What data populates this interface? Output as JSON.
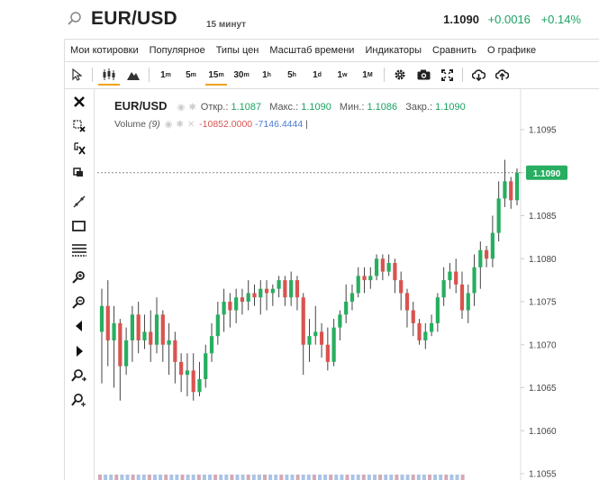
{
  "header": {
    "symbol": "EUR/USD",
    "timeframe": "15 минут",
    "last_price": "1.1090",
    "change": "+0.0016",
    "change_pct": "+0.14%"
  },
  "menu": {
    "items": [
      "Мои котировки",
      "Популярное",
      "Типы цен",
      "Масштаб времени",
      "Индикаторы",
      "Сравнить",
      "О графике"
    ]
  },
  "toolbar": {
    "cursor_icon": "cursor-icon",
    "chart_types": [
      "candles-icon",
      "mountain-icon"
    ],
    "timeframes": [
      {
        "n": "1",
        "u": "m"
      },
      {
        "n": "5",
        "u": "m"
      },
      {
        "n": "15",
        "u": "m"
      },
      {
        "n": "30",
        "u": "m"
      },
      {
        "n": "1",
        "u": "h"
      },
      {
        "n": "5",
        "u": "h"
      },
      {
        "n": "1",
        "u": "d"
      },
      {
        "n": "1",
        "u": "w"
      },
      {
        "n": "1",
        "u": "M"
      }
    ],
    "active_timeframe_index": 2,
    "right_icons": [
      "gear-icon",
      "camera-icon",
      "fullscreen-icon",
      "download-icon",
      "upload-icon"
    ]
  },
  "left_tools": [
    "close-icon",
    "crosshair-remove-icon",
    "magnet-icon",
    "copy-icon",
    "trendline-icon",
    "rectangle-icon",
    "fibonacci-icon",
    "zoom-in-icon",
    "zoom-out-icon",
    "scroll-left-icon",
    "scroll-right-icon",
    "zoom-in-fit-icon",
    "zoom-reset-icon"
  ],
  "legend": {
    "pair": "EUR/USD",
    "open_label": "Откр.:",
    "open": "1.1087",
    "high_label": "Макс.:",
    "high": "1.1090",
    "low_label": "Мин.:",
    "low": "1.1086",
    "close_label": "Закр.:",
    "close": "1.1090",
    "volume_label": "Volume",
    "volume_period": "(9)",
    "volume_val1": "-10852.0000",
    "volume_val2": "-7146.4444",
    "volume_sep": "|"
  },
  "colors": {
    "up": "#27ae60",
    "down": "#d9534f",
    "accent": "#f0a21e",
    "price_tag": "#27ae60"
  },
  "chart_data": {
    "type": "candlestick",
    "y_ticks": [
      "1.1095",
      "1.1090",
      "1.1085",
      "1.1080",
      "1.1075",
      "1.1070",
      "1.1065",
      "1.1060",
      "1.1055"
    ],
    "ylim": [
      1.1055,
      1.1097
    ],
    "last_price_tag": "1.1090",
    "last_price": 1.109,
    "candles": [
      [
        1.10715,
        1.10745,
        1.10765,
        1.10655
      ],
      [
        1.10745,
        1.10705,
        1.10775,
        1.10675
      ],
      [
        1.10705,
        1.10725,
        1.10745,
        1.1065
      ],
      [
        1.10725,
        1.10675,
        1.1073,
        1.10635
      ],
      [
        1.10675,
        1.10705,
        1.1072,
        1.10665
      ],
      [
        1.10705,
        1.10735,
        1.10745,
        1.1068
      ],
      [
        1.10735,
        1.10705,
        1.1075,
        1.1069
      ],
      [
        1.10705,
        1.10715,
        1.10735,
        1.10695
      ],
      [
        1.10715,
        1.107,
        1.1074,
        1.1068
      ],
      [
        1.107,
        1.10735,
        1.10755,
        1.1069
      ],
      [
        1.10735,
        1.107,
        1.1074,
        1.1068
      ],
      [
        1.107,
        1.10705,
        1.10725,
        1.10665
      ],
      [
        1.10705,
        1.1068,
        1.10715,
        1.10655
      ],
      [
        1.1068,
        1.10665,
        1.1069,
        1.10645
      ],
      [
        1.10665,
        1.1067,
        1.1069,
        1.1064
      ],
      [
        1.1067,
        1.10645,
        1.1069,
        1.10635
      ],
      [
        1.10645,
        1.1066,
        1.1068,
        1.1064
      ],
      [
        1.1066,
        1.1069,
        1.107,
        1.1065
      ],
      [
        1.1069,
        1.1071,
        1.10725,
        1.1068
      ],
      [
        1.1071,
        1.10735,
        1.1075,
        1.107
      ],
      [
        1.10735,
        1.1075,
        1.10765,
        1.10715
      ],
      [
        1.1075,
        1.1074,
        1.1076,
        1.1072
      ],
      [
        1.1074,
        1.10755,
        1.10765,
        1.10725
      ],
      [
        1.10755,
        1.1075,
        1.10765,
        1.10735
      ],
      [
        1.1075,
        1.1076,
        1.10775,
        1.1074
      ],
      [
        1.1076,
        1.10755,
        1.1077,
        1.10745
      ],
      [
        1.10755,
        1.10765,
        1.10775,
        1.10735
      ],
      [
        1.10765,
        1.1076,
        1.10775,
        1.1074
      ],
      [
        1.1076,
        1.10765,
        1.1077,
        1.10745
      ],
      [
        1.10765,
        1.10775,
        1.1078,
        1.10755
      ],
      [
        1.10775,
        1.10755,
        1.1078,
        1.10745
      ],
      [
        1.10755,
        1.10775,
        1.10785,
        1.10745
      ],
      [
        1.10775,
        1.10755,
        1.1078,
        1.1074
      ],
      [
        1.10755,
        1.107,
        1.1076,
        1.10665
      ],
      [
        1.107,
        1.1071,
        1.1073,
        1.1068
      ],
      [
        1.1071,
        1.10715,
        1.10745,
        1.107
      ],
      [
        1.10715,
        1.107,
        1.10725,
        1.10685
      ],
      [
        1.107,
        1.1068,
        1.1072,
        1.1067
      ],
      [
        1.1068,
        1.1072,
        1.1073,
        1.10675
      ],
      [
        1.1072,
        1.10735,
        1.1074,
        1.10705
      ],
      [
        1.10735,
        1.1075,
        1.1077,
        1.10725
      ],
      [
        1.1075,
        1.1076,
        1.1077,
        1.1074
      ],
      [
        1.1076,
        1.1078,
        1.1079,
        1.10755
      ],
      [
        1.1078,
        1.10775,
        1.1079,
        1.1076
      ],
      [
        1.10775,
        1.1078,
        1.1079,
        1.10765
      ],
      [
        1.1078,
        1.108,
        1.10805,
        1.10775
      ],
      [
        1.108,
        1.10785,
        1.10805,
        1.10775
      ],
      [
        1.10785,
        1.10795,
        1.10805,
        1.1078
      ],
      [
        1.10795,
        1.10775,
        1.108,
        1.1076
      ],
      [
        1.10775,
        1.1076,
        1.10785,
        1.1074
      ],
      [
        1.1076,
        1.1074,
        1.10765,
        1.1072
      ],
      [
        1.1074,
        1.10725,
        1.1075,
        1.1071
      ],
      [
        1.10725,
        1.10705,
        1.1073,
        1.107
      ],
      [
        1.10705,
        1.10715,
        1.10725,
        1.10695
      ],
      [
        1.10715,
        1.10725,
        1.10735,
        1.1071
      ],
      [
        1.10725,
        1.10755,
        1.1076,
        1.10715
      ],
      [
        1.10755,
        1.10775,
        1.1079,
        1.10745
      ],
      [
        1.10775,
        1.10785,
        1.10795,
        1.10765
      ],
      [
        1.10785,
        1.1077,
        1.108,
        1.1076
      ],
      [
        1.1077,
        1.1074,
        1.10785,
        1.1073
      ],
      [
        1.1074,
        1.1076,
        1.1077,
        1.10725
      ],
      [
        1.1076,
        1.1079,
        1.10805,
        1.10745
      ],
      [
        1.1079,
        1.1081,
        1.1082,
        1.10765
      ],
      [
        1.1081,
        1.108,
        1.10815,
        1.1079
      ],
      [
        1.108,
        1.1083,
        1.1085,
        1.1079
      ],
      [
        1.1083,
        1.1087,
        1.1089,
        1.1082
      ],
      [
        1.1087,
        1.1089,
        1.10915,
        1.1086
      ],
      [
        1.1089,
        1.10868,
        1.10895,
        1.10858
      ],
      [
        1.10868,
        1.109,
        1.10905,
        1.10862
      ]
    ]
  }
}
